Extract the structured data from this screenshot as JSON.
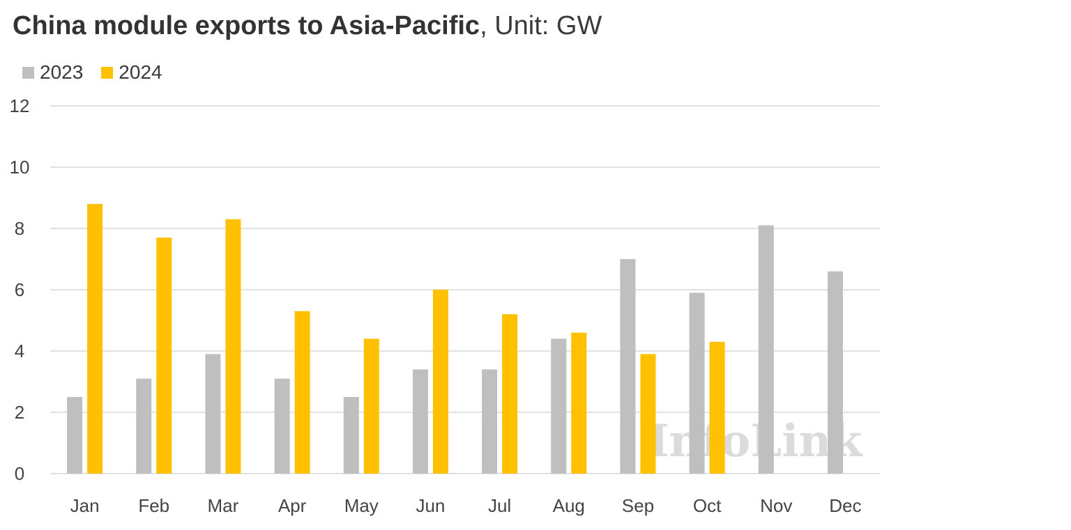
{
  "title": {
    "bold": "China module exports to Asia-Pacific",
    "rest": ", Unit: GW"
  },
  "watermark": "InfoLink",
  "colors": {
    "series_2023": "#bfbfbf",
    "series_2024": "#ffc000",
    "grid": "#d9d9d9"
  },
  "chart_data": {
    "type": "bar",
    "title": "China module exports to Asia-Pacific, Unit: GW",
    "xlabel": "",
    "ylabel": "",
    "categories": [
      "Jan",
      "Feb",
      "Mar",
      "Apr",
      "May",
      "Jun",
      "Jul",
      "Aug",
      "Sep",
      "Oct",
      "Nov",
      "Dec"
    ],
    "series": [
      {
        "name": "2023",
        "color": "#bfbfbf",
        "values": [
          2.5,
          3.1,
          3.9,
          3.1,
          2.5,
          3.4,
          3.4,
          4.4,
          7.0,
          5.9,
          8.1,
          6.6
        ]
      },
      {
        "name": "2024",
        "color": "#ffc000",
        "values": [
          8.8,
          7.7,
          8.3,
          5.3,
          4.4,
          6.0,
          5.2,
          4.6,
          3.9,
          4.3,
          null,
          null
        ]
      }
    ],
    "ylim": [
      0,
      12
    ],
    "yticks": [
      0,
      2,
      4,
      6,
      8,
      10,
      12
    ],
    "grid": true,
    "legend": "top-left"
  }
}
